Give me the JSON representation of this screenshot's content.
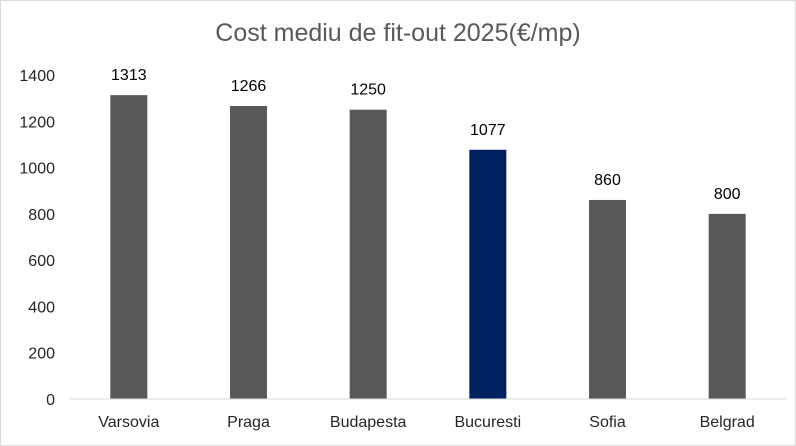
{
  "chart_data": {
    "type": "bar",
    "title": "Cost mediu de fit-out 2025(€/mp)",
    "categories": [
      "Varsovia",
      "Praga",
      "Budapesta",
      "Bucuresti",
      "Sofia",
      "Belgrad"
    ],
    "values": [
      1313,
      1266,
      1250,
      1077,
      860,
      800
    ],
    "data_labels": [
      "1313",
      "1266",
      "1250",
      "1077",
      "860",
      "800"
    ],
    "y_ticks": [
      "0",
      "200",
      "400",
      "600",
      "800",
      "1000",
      "1200",
      "1400"
    ],
    "ylim": [
      0,
      1400
    ],
    "xlabel": "",
    "ylabel": "",
    "grid": false,
    "legend": "none",
    "colors": {
      "default_bar": "#595959",
      "highlight_bar": "#002060",
      "axis": "#d9d9d9"
    },
    "highlight_category": "Bucuresti"
  }
}
